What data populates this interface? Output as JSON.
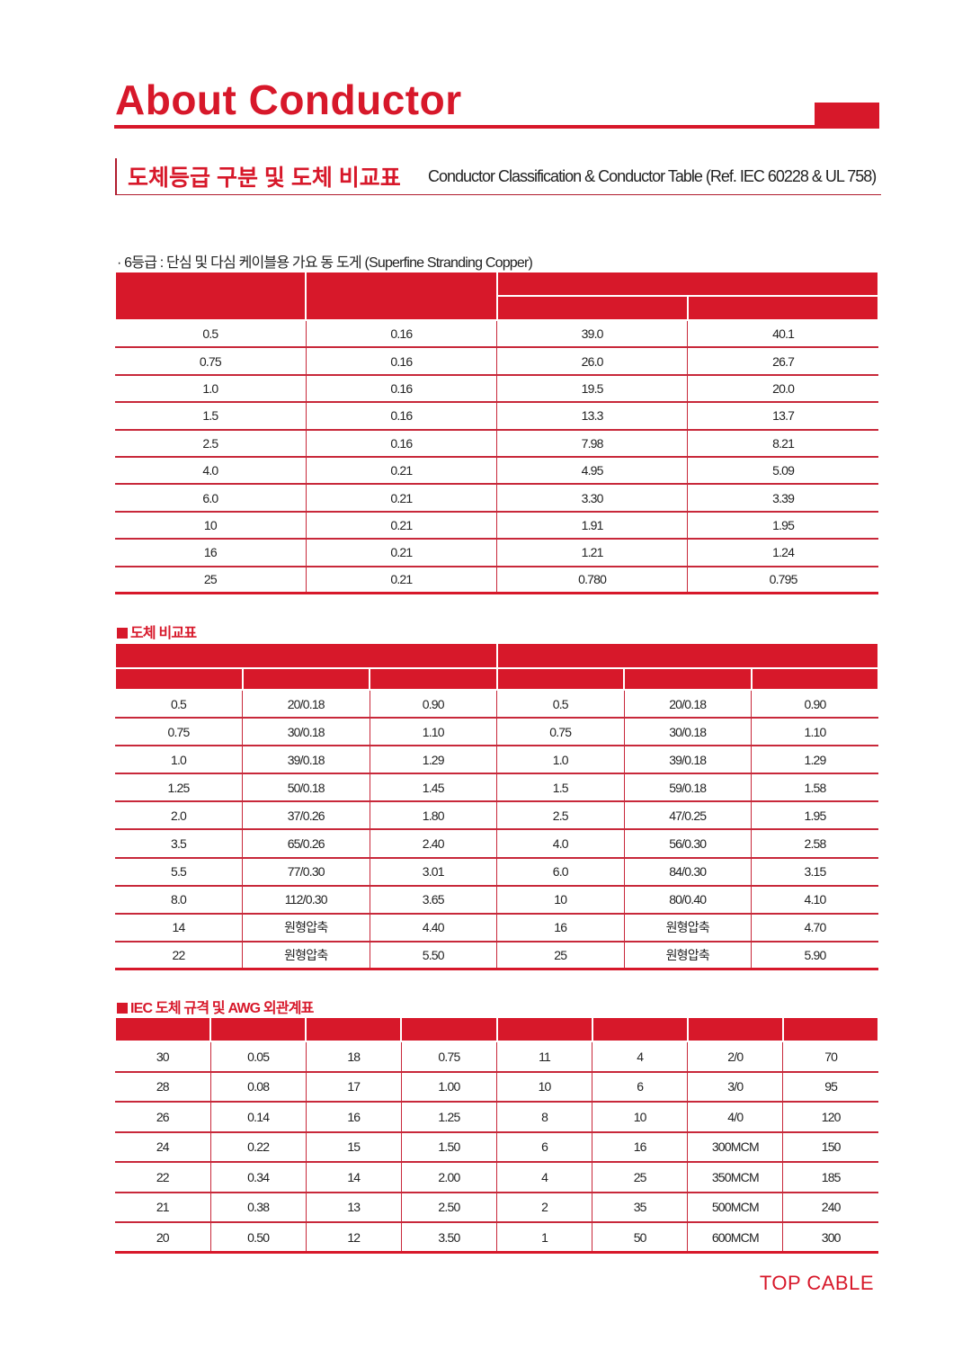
{
  "header": {
    "title": "About Conductor",
    "subtitle_ko": "도체등급 구분 및 도체 비교표",
    "subtitle_en": "Conductor Classification & Conductor Table (Ref. IEC 60228 & UL 758)"
  },
  "accent_color": "#d7182a",
  "table1": {
    "note": "· 6등급 : 단심 및 다심 케이블용 가요 동 도게 (Superfine Stranding Copper)",
    "rows": [
      [
        "0.5",
        "0.16",
        "39.0",
        "40.1"
      ],
      [
        "0.75",
        "0.16",
        "26.0",
        "26.7"
      ],
      [
        "1.0",
        "0.16",
        "19.5",
        "20.0"
      ],
      [
        "1.5",
        "0.16",
        "13.3",
        "13.7"
      ],
      [
        "2.5",
        "0.16",
        "7.98",
        "8.21"
      ],
      [
        "4.0",
        "0.21",
        "4.95",
        "5.09"
      ],
      [
        "6.0",
        "0.21",
        "3.30",
        "3.39"
      ],
      [
        "10",
        "0.21",
        "1.91",
        "1.95"
      ],
      [
        "16",
        "0.21",
        "1.21",
        "1.24"
      ],
      [
        "25",
        "0.21",
        "0.780",
        "0.795"
      ]
    ]
  },
  "table2": {
    "section_title": "도체 비교표",
    "rows": [
      [
        "0.5",
        "20/0.18",
        "0.90",
        "0.5",
        "20/0.18",
        "0.90"
      ],
      [
        "0.75",
        "30/0.18",
        "1.10",
        "0.75",
        "30/0.18",
        "1.10"
      ],
      [
        "1.0",
        "39/0.18",
        "1.29",
        "1.0",
        "39/0.18",
        "1.29"
      ],
      [
        "1.25",
        "50/0.18",
        "1.45",
        "1.5",
        "59/0.18",
        "1.58"
      ],
      [
        "2.0",
        "37/0.26",
        "1.80",
        "2.5",
        "47/0.25",
        "1.95"
      ],
      [
        "3.5",
        "65/0.26",
        "2.40",
        "4.0",
        "56/0.30",
        "2.58"
      ],
      [
        "5.5",
        "77/0.30",
        "3.01",
        "6.0",
        "84/0.30",
        "3.15"
      ],
      [
        "8.0",
        "112/0.30",
        "3.65",
        "10",
        "80/0.40",
        "4.10"
      ],
      [
        "14",
        "원형압축",
        "4.40",
        "16",
        "원형압축",
        "4.70"
      ],
      [
        "22",
        "원형압축",
        "5.50",
        "25",
        "원형압축",
        "5.90"
      ]
    ]
  },
  "table3": {
    "section_title": "IEC 도체 규격 및 AWG 외관계표",
    "rows": [
      [
        "30",
        "0.05",
        "18",
        "0.75",
        "11",
        "4",
        "2/0",
        "70"
      ],
      [
        "28",
        "0.08",
        "17",
        "1.00",
        "10",
        "6",
        "3/0",
        "95"
      ],
      [
        "26",
        "0.14",
        "16",
        "1.25",
        "8",
        "10",
        "4/0",
        "120"
      ],
      [
        "24",
        "0.22",
        "15",
        "1.50",
        "6",
        "16",
        "300MCM",
        "150"
      ],
      [
        "22",
        "0.34",
        "14",
        "2.00",
        "4",
        "25",
        "350MCM",
        "185"
      ],
      [
        "21",
        "0.38",
        "13",
        "2.50",
        "2",
        "35",
        "500MCM",
        "240"
      ],
      [
        "20",
        "0.50",
        "12",
        "3.50",
        "1",
        "50",
        "600MCM",
        "300"
      ]
    ]
  },
  "footer": {
    "brand": "TOP CABLE"
  }
}
